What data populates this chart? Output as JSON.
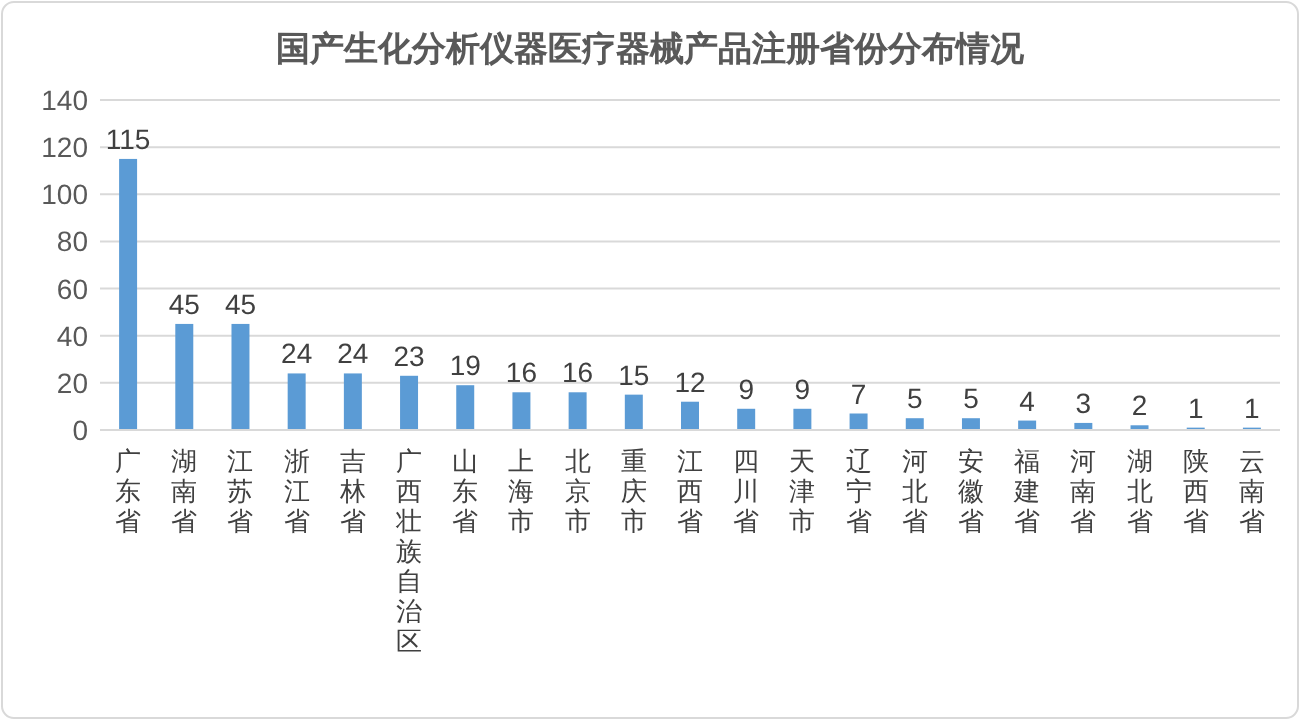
{
  "chart_data": {
    "type": "bar",
    "title": "国产生化分析仪器医疗器械产品注册省份分布情况",
    "categories": [
      "广东省",
      "湖南省",
      "江苏省",
      "浙江省",
      "吉林省",
      "广西壮族自治区",
      "山东省",
      "上海市",
      "北京市",
      "重庆市",
      "江西省",
      "四川省",
      "天津市",
      "辽宁省",
      "河北省",
      "安徽省",
      "福建省",
      "河南省",
      "湖北省",
      "陕西省",
      "云南省"
    ],
    "values": [
      115,
      45,
      45,
      24,
      24,
      23,
      19,
      16,
      16,
      15,
      12,
      9,
      9,
      7,
      5,
      5,
      4,
      3,
      2,
      1,
      1
    ],
    "color": "#5b9bd5",
    "ylim": [
      0,
      140
    ],
    "yticks": [
      0,
      20,
      40,
      60,
      80,
      100,
      120,
      140
    ],
    "grid": "y",
    "data_labels": true
  }
}
